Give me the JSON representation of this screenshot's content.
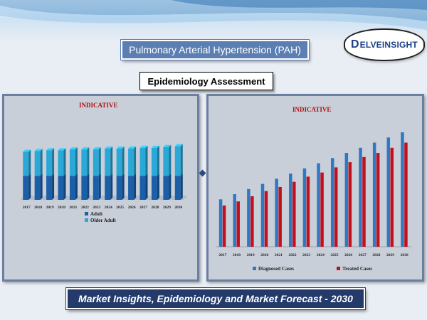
{
  "header": {
    "title": "Pulmonary Arterial Hypertension (PAH)",
    "logo_text": "ELVEINSIGHT",
    "logo_mark": "D"
  },
  "subtitle": "Epidemiology Assessment",
  "footer": "Market Insights, Epidemiology and Market Forecast - 2030",
  "chart_data": [
    {
      "type": "bar",
      "title": "INDICATIVE",
      "categories": [
        "2017",
        "2018",
        "2019",
        "2020",
        "2021",
        "2022",
        "2023",
        "2024",
        "2025",
        "2026",
        "2027",
        "2028",
        "2029",
        "2030"
      ],
      "series": [
        {
          "name": "Adult",
          "values": [
            30,
            30,
            30,
            30,
            30,
            30,
            30,
            30,
            30,
            30,
            30,
            30,
            30,
            30
          ],
          "color": "#1a5fa8"
        },
        {
          "name": "Older Adult",
          "values": [
            30,
            31,
            32,
            32,
            33,
            33,
            33,
            34,
            34,
            34,
            35,
            35,
            36,
            37
          ],
          "color": "#2aa8d8"
        }
      ],
      "stacked": true,
      "legend": "bottom-left",
      "ylim": [
        0,
        80
      ],
      "grid": false
    },
    {
      "type": "bar",
      "title": "INDICATIVE",
      "categories": [
        "2017",
        "2018",
        "2019",
        "2020",
        "2021",
        "2022",
        "2023",
        "2024",
        "2025",
        "2026",
        "2027",
        "2028",
        "2029",
        "2030"
      ],
      "series": [
        {
          "name": "Diagnosed Cases",
          "values": [
            46,
            51,
            56,
            61,
            66,
            71,
            76,
            81,
            86,
            91,
            96,
            101,
            106,
            111
          ],
          "color": "#2f78c4"
        },
        {
          "name": "Treated Cases",
          "values": [
            40,
            44,
            49,
            54,
            58,
            63,
            68,
            72,
            77,
            82,
            87,
            91,
            96,
            101
          ],
          "color": "#c4101c"
        }
      ],
      "legend": "bottom",
      "ylim": [
        0,
        120
      ],
      "grid": false
    }
  ]
}
